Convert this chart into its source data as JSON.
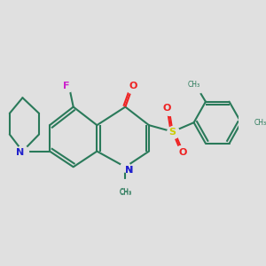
{
  "background_color": "#e0e0e0",
  "bond_color": "#2a7a5a",
  "N_color": "#2222cc",
  "O_color": "#ee2222",
  "F_color": "#cc22cc",
  "S_color": "#cccc00",
  "figsize": [
    3.0,
    3.0
  ],
  "dpi": 100,
  "xlim": [
    0,
    10
  ],
  "ylim": [
    0,
    10
  ]
}
